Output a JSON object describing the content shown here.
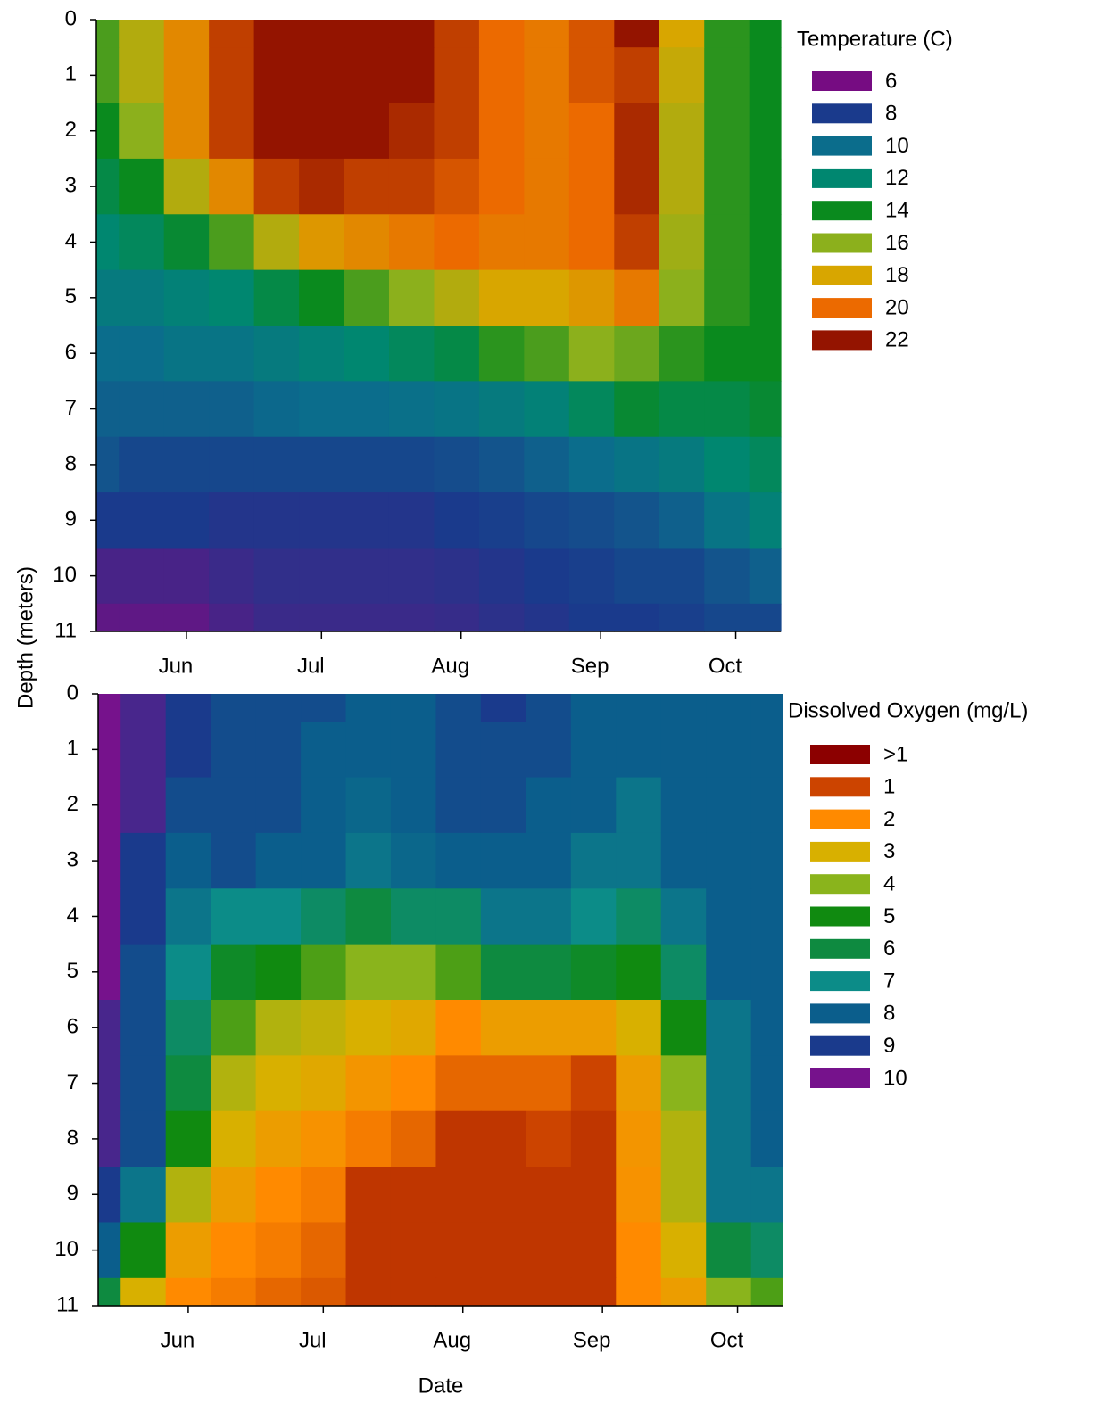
{
  "axis_labels": {
    "y": "Depth (meters)",
    "x": "Date"
  },
  "chart_data": [
    {
      "type": "contour",
      "title": "Temperature (C)",
      "x": [
        132,
        142,
        152,
        162,
        172,
        182,
        192,
        202,
        212,
        222,
        232,
        242,
        252,
        262,
        272,
        282
      ],
      "xlim": [
        132,
        284
      ],
      "xticks": [
        {
          "value": 152,
          "label": "Jun"
        },
        {
          "value": 182,
          "label": "Jul"
        },
        {
          "value": 213,
          "label": "Aug"
        },
        {
          "value": 244,
          "label": "Sep"
        },
        {
          "value": 274,
          "label": "Oct"
        }
      ],
      "ylim": [
        11,
        0
      ],
      "yticks": [
        0,
        1,
        2,
        3,
        4,
        5,
        6,
        7,
        8,
        9,
        10,
        11
      ],
      "z": [
        [
          15,
          17,
          19,
          21,
          22,
          22.5,
          22.5,
          22,
          21,
          20,
          19.5,
          20.5,
          22,
          18,
          14.5,
          14
        ],
        [
          15,
          17,
          19,
          21,
          22,
          22,
          22,
          22,
          21,
          20,
          19.5,
          20.5,
          21,
          17.5,
          14.5,
          14
        ],
        [
          14,
          16,
          19,
          21,
          22,
          22,
          22,
          21.5,
          21,
          20,
          19.5,
          20,
          21.5,
          17,
          14.5,
          14
        ],
        [
          13,
          14,
          17,
          19,
          21,
          21.5,
          21,
          21,
          20.5,
          20,
          19.5,
          20,
          21.5,
          17,
          14.5,
          14
        ],
        [
          12,
          12.5,
          13.5,
          15,
          17,
          18.5,
          19,
          19.5,
          20,
          19.5,
          19.5,
          20,
          21,
          16.5,
          14.5,
          14
        ],
        [
          11,
          11,
          11.5,
          12,
          13,
          14,
          15,
          16,
          17,
          18,
          18,
          18.5,
          19.5,
          16,
          14.5,
          14
        ],
        [
          10,
          10,
          10.5,
          10.5,
          11,
          11.5,
          12,
          12.5,
          13,
          14.5,
          15,
          16,
          15.5,
          14.5,
          14,
          14
        ],
        [
          9.5,
          9.5,
          9.5,
          9.5,
          9.8,
          10,
          10,
          10.2,
          10.5,
          11,
          11.5,
          12.5,
          13.5,
          13,
          13,
          13.5
        ],
        [
          9,
          8.5,
          8.5,
          8.5,
          8.5,
          8.5,
          8.5,
          8.5,
          8.7,
          9,
          9.5,
          10,
          10.5,
          11,
          12,
          12.5
        ],
        [
          8,
          8,
          8,
          7.8,
          7.8,
          7.8,
          7.8,
          7.8,
          8,
          8.2,
          8.5,
          8.7,
          9,
          9.5,
          10.5,
          11.5
        ],
        [
          7,
          7,
          7,
          7.3,
          7.5,
          7.5,
          7.5,
          7.5,
          7.6,
          7.8,
          8,
          8.2,
          8.5,
          8.5,
          9,
          9.5
        ],
        [
          6.5,
          6.5,
          6.5,
          7,
          7.3,
          7.3,
          7.3,
          7.3,
          7.4,
          7.6,
          7.8,
          8,
          8,
          8.2,
          8.5,
          8.5
        ]
      ],
      "levels": [
        {
          "value": 6,
          "color": "#760c82"
        },
        {
          "value": 8,
          "color": "#1a3a8c"
        },
        {
          "value": 10,
          "color": "#0b6d8c"
        },
        {
          "value": 12,
          "color": "#008770"
        },
        {
          "value": 14,
          "color": "#0a8a1e"
        },
        {
          "value": 16,
          "color": "#8cb01c"
        },
        {
          "value": 18,
          "color": "#d8a600"
        },
        {
          "value": 20,
          "color": "#ec6a00"
        },
        {
          "value": 22,
          "color": "#941400"
        }
      ]
    },
    {
      "type": "contour",
      "title": "Dissolved Oxygen (mg/L)",
      "x": [
        132,
        142,
        152,
        162,
        172,
        182,
        192,
        202,
        212,
        222,
        232,
        242,
        252,
        262,
        272,
        282
      ],
      "xlim": [
        132,
        284
      ],
      "xticks": [
        {
          "value": 152,
          "label": "Jun"
        },
        {
          "value": 182,
          "label": "Jul"
        },
        {
          "value": 213,
          "label": "Aug"
        },
        {
          "value": 244,
          "label": "Sep"
        },
        {
          "value": 274,
          "label": "Oct"
        }
      ],
      "ylim": [
        11,
        0
      ],
      "yticks": [
        0,
        1,
        2,
        3,
        4,
        5,
        6,
        7,
        8,
        9,
        10,
        11
      ],
      "z": [
        [
          10,
          9.5,
          9,
          8.5,
          8.5,
          8.5,
          8,
          8,
          8.5,
          9,
          8.5,
          8,
          8,
          8,
          8,
          8
        ],
        [
          10,
          9.5,
          9,
          8.5,
          8.5,
          8,
          8,
          8,
          8.5,
          8.5,
          8.5,
          8,
          8,
          8,
          8,
          8
        ],
        [
          10,
          9.5,
          8.5,
          8.5,
          8.5,
          8,
          7.8,
          8,
          8.5,
          8.5,
          8,
          8,
          7.5,
          8,
          8,
          8
        ],
        [
          10,
          9,
          8,
          8.5,
          8,
          8,
          7.5,
          7.8,
          8,
          8,
          8,
          7.5,
          7.5,
          8,
          8,
          8
        ],
        [
          10,
          9,
          7.5,
          7,
          7,
          6.5,
          6,
          6.5,
          6.5,
          7.5,
          7.5,
          7,
          6.5,
          7.5,
          8,
          8
        ],
        [
          10,
          8.5,
          7,
          5.5,
          5,
          4.5,
          4,
          4,
          4.5,
          6,
          6,
          5.5,
          5,
          6.5,
          8,
          8
        ],
        [
          9.5,
          8.5,
          6.5,
          4.5,
          3.5,
          3.3,
          3,
          2.8,
          2,
          2.5,
          2.5,
          2.5,
          3,
          5,
          7.5,
          8
        ],
        [
          9.5,
          8.5,
          6,
          3.5,
          3,
          2.8,
          2.3,
          2,
          1.5,
          1.5,
          1.5,
          1,
          2.5,
          4,
          7.5,
          8
        ],
        [
          9.5,
          8.5,
          5,
          3,
          2.5,
          2.2,
          1.8,
          1.5,
          0.8,
          0.8,
          1,
          0.8,
          2.3,
          3.5,
          7.5,
          8
        ],
        [
          9,
          7.5,
          3.5,
          2.5,
          2,
          1.8,
          0.8,
          0.8,
          0.8,
          0.8,
          0.8,
          0.8,
          2.2,
          3.5,
          7.5,
          7.5
        ],
        [
          8,
          5,
          2.5,
          2,
          1.8,
          1.5,
          0.8,
          0.8,
          0.8,
          0.8,
          0.8,
          0.8,
          2,
          3,
          6,
          6.5
        ],
        [
          6,
          3,
          2,
          1.8,
          1.5,
          1.3,
          0.8,
          0.8,
          0.8,
          0.8,
          0.8,
          0.8,
          2,
          2.5,
          4,
          4.5
        ]
      ],
      "levels": [
        {
          "value": 0,
          "label": ">1",
          "color": "#8c0000"
        },
        {
          "value": 1,
          "color": "#cc4400"
        },
        {
          "value": 2,
          "color": "#ff8a00"
        },
        {
          "value": 3,
          "color": "#d8b000"
        },
        {
          "value": 4,
          "color": "#8ab41c"
        },
        {
          "value": 5,
          "color": "#108a10"
        },
        {
          "value": 6,
          "color": "#0e8a40"
        },
        {
          "value": 7,
          "color": "#0c8c88"
        },
        {
          "value": 8,
          "color": "#0b5e8c"
        },
        {
          "value": 9,
          "color": "#1a3a8c"
        },
        {
          "value": 10,
          "color": "#76128c"
        }
      ]
    }
  ]
}
